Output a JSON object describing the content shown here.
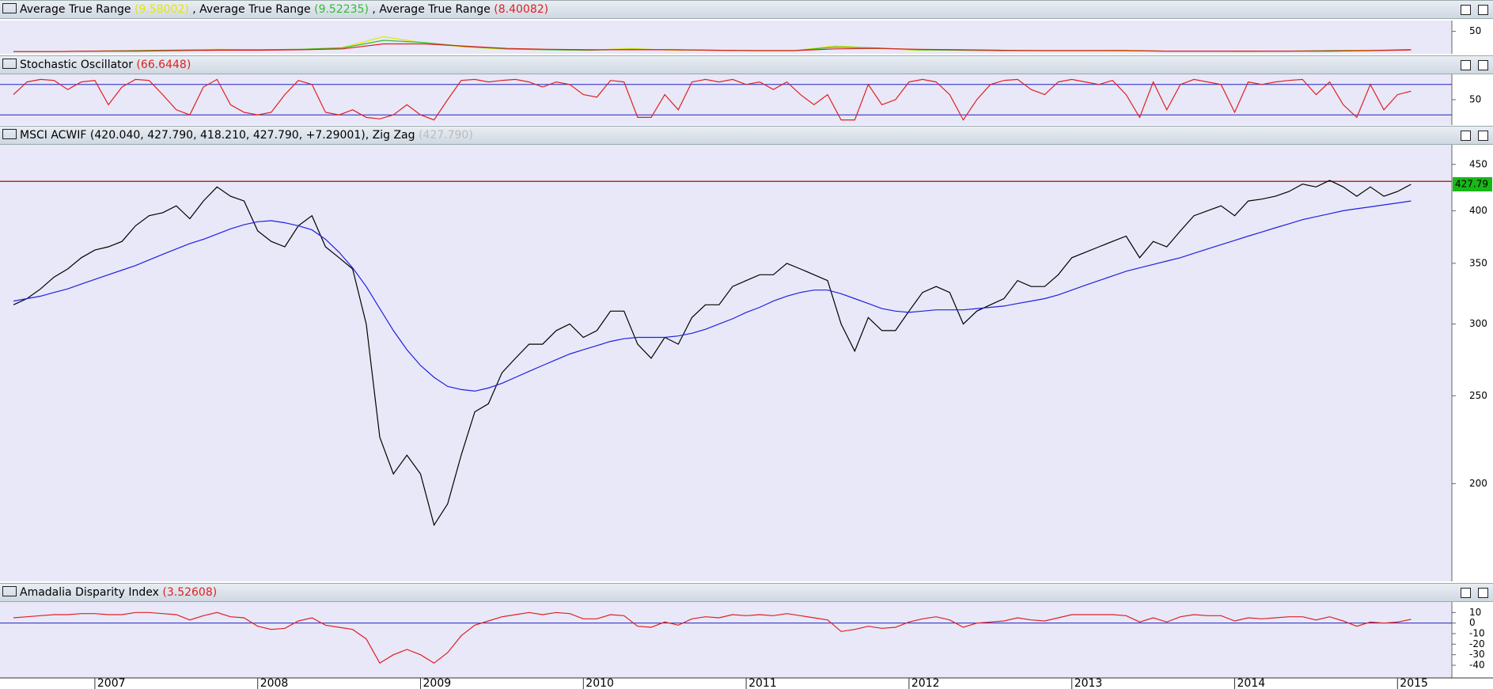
{
  "chart_data": [
    {
      "type": "line",
      "series": [
        {
          "name": "Average True Range",
          "color": "#e6e600",
          "values": [
            5,
            5,
            6,
            7,
            9,
            10,
            9,
            10,
            14,
            38,
            24,
            15,
            10,
            9,
            8,
            12,
            8,
            8,
            7,
            7,
            18,
            12,
            8,
            9,
            7,
            7,
            7,
            8,
            6,
            6,
            5,
            6,
            7,
            8,
            9.58002
          ]
        },
        {
          "name": "Average True Range",
          "color": "#33bb33",
          "values": [
            5,
            5,
            6,
            7,
            8,
            9,
            9,
            10,
            13,
            30,
            25,
            16,
            11,
            9,
            8,
            10,
            9,
            8,
            7,
            7,
            15,
            13,
            9,
            8,
            7,
            7,
            7,
            7,
            6,
            6,
            6,
            6,
            7,
            7,
            9.52235
          ]
        },
        {
          "name": "Average True Range",
          "color": "#e02020",
          "values": [
            5,
            5,
            6,
            6,
            7,
            8,
            8,
            9,
            11,
            22,
            22,
            17,
            12,
            10,
            9,
            9,
            9,
            8,
            7,
            7,
            11,
            12,
            10,
            9,
            8,
            7,
            7,
            7,
            6,
            6,
            6,
            6,
            6,
            7,
            8.40082
          ]
        }
      ],
      "ylim": [
        0,
        74
      ],
      "yticks": [
        50
      ]
    },
    {
      "type": "line",
      "title": "Stochastic Oscillator",
      "color": "#e02020",
      "values": [
        60,
        85,
        90,
        88,
        70,
        85,
        88,
        40,
        75,
        90,
        88,
        60,
        30,
        20,
        75,
        90,
        40,
        25,
        20,
        25,
        60,
        88,
        80,
        25,
        20,
        30,
        15,
        12,
        20,
        40,
        20,
        10,
        50,
        88,
        90,
        85,
        88,
        90,
        85,
        75,
        85,
        80,
        60,
        55,
        88,
        85,
        15,
        15,
        60,
        30,
        85,
        90,
        85,
        90,
        80,
        85,
        70,
        85,
        60,
        40,
        60,
        10,
        10,
        80,
        40,
        50,
        85,
        90,
        85,
        60,
        10,
        50,
        80,
        88,
        90,
        70,
        60,
        85,
        90,
        85,
        80,
        88,
        60,
        15,
        85,
        30,
        80,
        90,
        85,
        80,
        25,
        85,
        80,
        85,
        88,
        90,
        60,
        85,
        40,
        15,
        80,
        30,
        60,
        66.6448
      ],
      "ylim": [
        0,
        100
      ],
      "yticks": [
        50
      ],
      "levels": [
        20,
        80
      ],
      "level_color": "#2020c0"
    },
    {
      "type": "line",
      "title": "MSCI ACWIF",
      "quote": [
        "420.040",
        "427.790",
        "418.210",
        "427.790",
        "+7.29001"
      ],
      "overlay": "Zig Zag",
      "overlay_value": "427.790",
      "log_scale": true,
      "ylim": [
        156,
        473
      ],
      "yticks": [
        200,
        250,
        300,
        350,
        400,
        450
      ],
      "reference_line": 431,
      "reference_color": "#c00000",
      "series": [
        {
          "color": "#000000",
          "values": [
            315,
            320,
            328,
            338,
            345,
            355,
            362,
            365,
            370,
            385,
            395,
            398,
            405,
            392,
            410,
            425,
            415,
            410,
            380,
            370,
            365,
            385,
            395,
            365,
            355,
            345,
            300,
            225,
            205,
            215,
            205,
            180,
            190,
            215,
            240,
            245,
            265,
            275,
            285,
            285,
            295,
            300,
            290,
            295,
            310,
            310,
            285,
            275,
            290,
            285,
            305,
            315,
            315,
            330,
            335,
            340,
            340,
            350,
            345,
            340,
            335,
            300,
            280,
            305,
            295,
            295,
            310,
            325,
            330,
            325,
            300,
            310,
            315,
            320,
            335,
            330,
            330,
            340,
            355,
            360,
            365,
            370,
            375,
            355,
            370,
            365,
            380,
            395,
            400,
            405,
            395,
            410,
            412,
            415,
            420,
            428,
            425,
            432,
            425,
            415,
            425,
            415,
            420,
            427.79
          ]
        },
        {
          "color": "#2020e0",
          "values": [
            318,
            320,
            322,
            325,
            328,
            332,
            336,
            340,
            344,
            348,
            353,
            358,
            363,
            368,
            372,
            377,
            382,
            386,
            389,
            390,
            388,
            385,
            381,
            372,
            360,
            346,
            330,
            312,
            295,
            281,
            270,
            262,
            256,
            254,
            253,
            255,
            258,
            262,
            266,
            270,
            274,
            278,
            281,
            284,
            287,
            289,
            290,
            290,
            290,
            291,
            293,
            296,
            300,
            304,
            309,
            313,
            318,
            322,
            325,
            327,
            327,
            324,
            320,
            316,
            312,
            310,
            309,
            310,
            311,
            311,
            311,
            312,
            313,
            314,
            316,
            318,
            320,
            323,
            327,
            331,
            335,
            339,
            343,
            346,
            349,
            352,
            355,
            359,
            363,
            367,
            371,
            375,
            379,
            383,
            387,
            391,
            394,
            397,
            400,
            402,
            404,
            406,
            408,
            410
          ]
        }
      ]
    },
    {
      "type": "line",
      "title": "Amadalia Disparity Index",
      "color": "#e02020",
      "categories": [
        null,
        null,
        null,
        null,
        null,
        null,
        "2007",
        null,
        null,
        null,
        null,
        null,
        null,
        null,
        null,
        null,
        null,
        null,
        "2008",
        null,
        null,
        null,
        null,
        null,
        null,
        null,
        null,
        null,
        null,
        null,
        "2009",
        null,
        null,
        null,
        null,
        null,
        null,
        null,
        null,
        null,
        null,
        null,
        "2010",
        null,
        null,
        null,
        null,
        null,
        null,
        null,
        null,
        null,
        null,
        null,
        "2011",
        null,
        null,
        null,
        null,
        null,
        null,
        null,
        null,
        null,
        null,
        null,
        "2012",
        null,
        null,
        null,
        null,
        null,
        null,
        null,
        null,
        null,
        null,
        null,
        "2013",
        null,
        null,
        null,
        null,
        null,
        null,
        null,
        null,
        null,
        null,
        null,
        "2014",
        null,
        null,
        null,
        null,
        null,
        null,
        null,
        null,
        null,
        null,
        null,
        "2015",
        null
      ],
      "values": [
        5,
        6,
        7,
        8,
        8,
        9,
        9,
        8,
        8,
        10,
        10,
        9,
        8,
        3,
        7,
        10,
        6,
        5,
        -3,
        -6,
        -5,
        2,
        5,
        -2,
        -4,
        -6,
        -15,
        -38,
        -30,
        -25,
        -30,
        -38,
        -28,
        -12,
        -2,
        2,
        6,
        8,
        10,
        8,
        10,
        9,
        4,
        4,
        8,
        7,
        -3,
        -4,
        1,
        -2,
        4,
        6,
        5,
        8,
        7,
        8,
        7,
        9,
        7,
        5,
        3,
        -8,
        -6,
        -3,
        -5,
        -4,
        1,
        4,
        6,
        3,
        -4,
        0,
        1,
        2,
        5,
        3,
        2,
        5,
        8,
        8,
        8,
        8,
        7,
        1,
        5,
        1,
        6,
        8,
        7,
        7,
        2,
        5,
        4,
        5,
        6,
        6,
        3,
        6,
        2,
        -3,
        1,
        0,
        1,
        3.52608
      ],
      "ylim": [
        -52,
        20
      ],
      "yticks": [
        10,
        0,
        -10,
        -20,
        -30,
        -40
      ],
      "zero_line_color": "#2020c0"
    }
  ]
}
